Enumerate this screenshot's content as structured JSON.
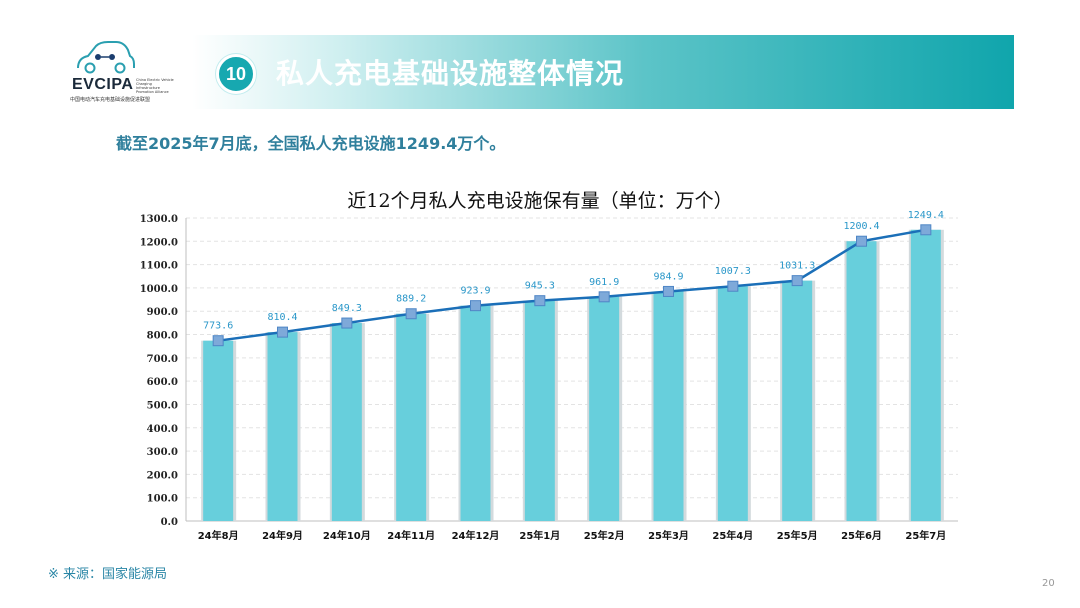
{
  "logo": {
    "name": "EVCIPA",
    "en_text": "China Electric Vehicle Charging Infrastructure Promotion Alliance",
    "cn_text": "中国电动汽车充电基础设施促进联盟"
  },
  "header": {
    "number": "10",
    "title": "私人充电基础设施整体情况"
  },
  "summary": "截至2025年7月底，全国私人充电设施1249.4万个。",
  "chart_data": {
    "type": "bar+line",
    "title": "近12个月私人充电设施保有量（单位：万个）",
    "categories": [
      "24年8月",
      "24年9月",
      "24年10月",
      "24年11月",
      "24年12月",
      "25年1月",
      "25年2月",
      "25年3月",
      "25年4月",
      "25年5月",
      "25年6月",
      "25年7月"
    ],
    "series": [
      {
        "name": "私人充电设施保有量",
        "values": [
          773.6,
          810.4,
          849.3,
          889.2,
          923.9,
          945.3,
          961.9,
          984.9,
          1007.3,
          1031.3,
          1200.4,
          1249.4
        ]
      }
    ],
    "ylim": [
      0,
      1300
    ],
    "yticks": [
      "0.0",
      "100.0",
      "200.0",
      "300.0",
      "400.0",
      "500.0",
      "600.0",
      "700.0",
      "800.0",
      "900.0",
      "1000.0",
      "1100.0",
      "1200.0",
      "1300.0"
    ],
    "colors": {
      "bar": "#67cfdc",
      "bar_shadow": "#d3dadd",
      "line": "#1b6fb8",
      "marker": "#7ea9d9",
      "label": "#2a97c9"
    }
  },
  "source": "※ 来源：国家能源局",
  "page_number": "20"
}
